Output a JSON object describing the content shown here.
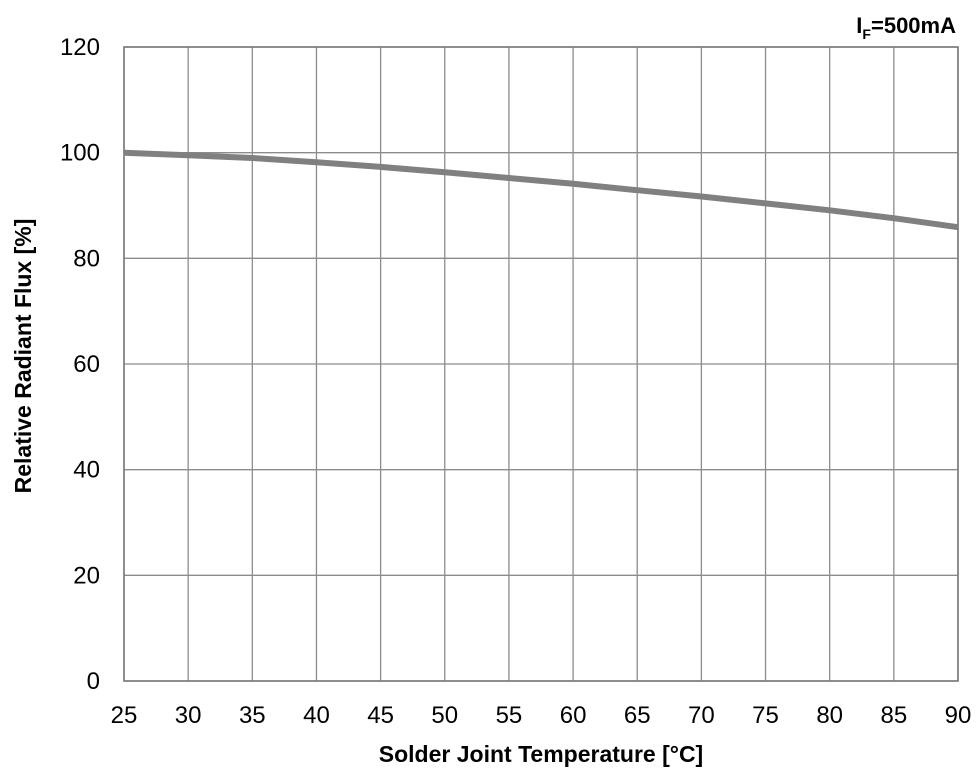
{
  "chart_data": {
    "type": "line",
    "title": "",
    "xlabel": "Solder Joint Temperature [°C]",
    "ylabel": "Relative Radiant Flux [%]",
    "xlim": [
      25,
      90
    ],
    "ylim": [
      0,
      120
    ],
    "xticks": [
      25,
      30,
      35,
      40,
      45,
      50,
      55,
      60,
      65,
      70,
      75,
      80,
      85,
      90
    ],
    "yticks": [
      0,
      20,
      40,
      60,
      80,
      100,
      120
    ],
    "grid": true,
    "annotation": {
      "main": "I",
      "subscript": "F",
      "rest": "=500mA"
    },
    "series": [
      {
        "color": "#808080",
        "x": [
          25,
          30,
          35,
          40,
          45,
          50,
          55,
          60,
          65,
          70,
          75,
          80,
          85,
          90
        ],
        "y": [
          100,
          99.5,
          99,
          98.2,
          97.3,
          96.3,
          95.2,
          94.1,
          92.9,
          91.7,
          90.4,
          89.1,
          87.6,
          85.9
        ]
      }
    ]
  }
}
